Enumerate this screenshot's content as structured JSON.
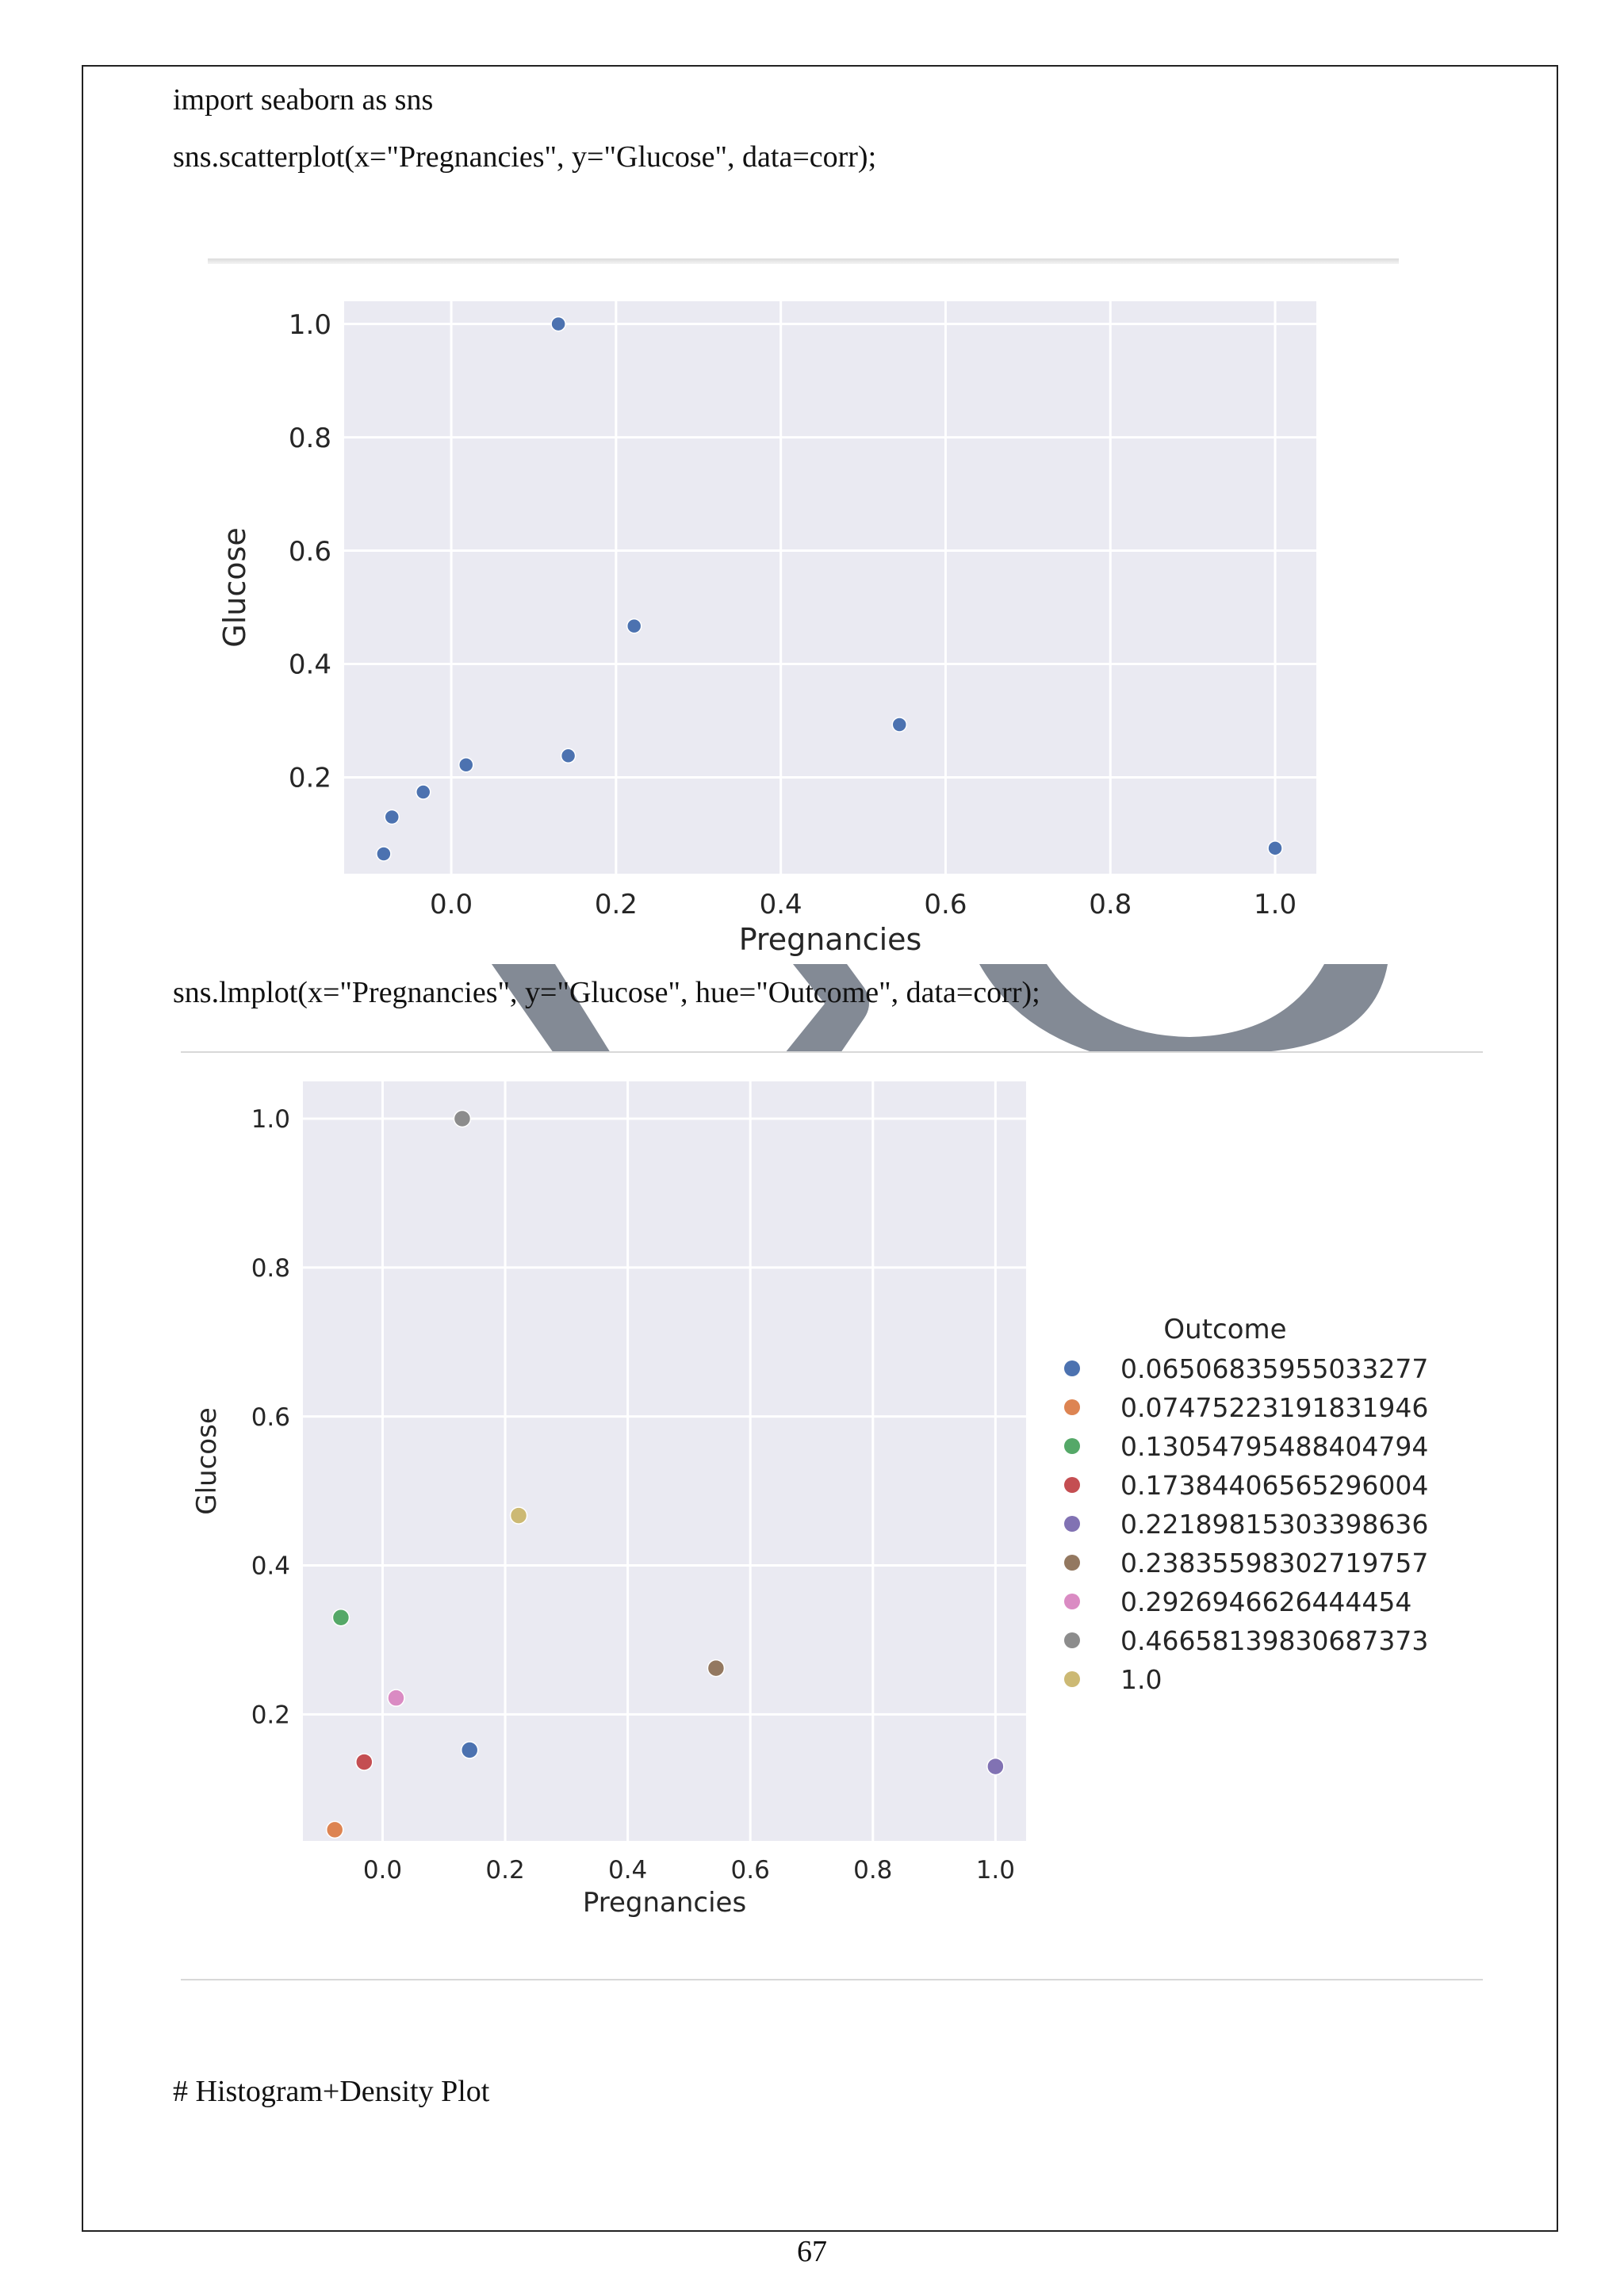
{
  "code": {
    "line1": "import seaborn as sns",
    "line2": "sns.scatterplot(x=\"Pregnancies\", y=\"Glucose\", data=corr);",
    "line3": "sns.lmplot(x=\"Pregnancies\", y=\"Glucose\", hue=\"Outcome\", data=corr);",
    "line4": "# Histogram+Density Plot"
  },
  "page_number": "67",
  "colors": {
    "plot_bg": "#eaeaf2",
    "grid": "#ffffff",
    "point_blue": "#4c72b0",
    "watermark": "#838a95"
  },
  "chart_data": [
    {
      "type": "scatter",
      "xlabel": "Pregnancies",
      "ylabel": "Glucose",
      "xlim": [
        -0.13,
        1.05
      ],
      "ylim": [
        0.03,
        1.04
      ],
      "xticks": [
        0.0,
        0.2,
        0.4,
        0.6,
        0.8,
        1.0
      ],
      "xtick_labels": [
        "0.0",
        "0.2",
        "0.4",
        "0.6",
        "0.8",
        "1.0"
      ],
      "yticks": [
        0.2,
        0.4,
        0.6,
        0.8,
        1.0
      ],
      "ytick_labels": [
        "0.2",
        "0.4",
        "0.6",
        "0.8",
        "1.0"
      ],
      "grid": true,
      "points": [
        {
          "x": -0.082,
          "y": 0.065
        },
        {
          "x": -0.072,
          "y": 0.13
        },
        {
          "x": -0.034,
          "y": 0.174
        },
        {
          "x": 0.018,
          "y": 0.222
        },
        {
          "x": 0.13,
          "y": 1.0
        },
        {
          "x": 0.142,
          "y": 0.238
        },
        {
          "x": 0.222,
          "y": 0.467
        },
        {
          "x": 0.544,
          "y": 0.293
        },
        {
          "x": 1.0,
          "y": 0.075
        }
      ]
    },
    {
      "type": "scatter",
      "xlabel": "Pregnancies",
      "ylabel": "Glucose",
      "xlim": [
        -0.13,
        1.05
      ],
      "ylim": [
        0.03,
        1.05
      ],
      "xticks": [
        0.0,
        0.2,
        0.4,
        0.6,
        0.8,
        1.0
      ],
      "xtick_labels": [
        "0.0",
        "0.2",
        "0.4",
        "0.6",
        "0.8",
        "1.0"
      ],
      "yticks": [
        0.2,
        0.4,
        0.6,
        0.8,
        1.0
      ],
      "ytick_labels": [
        "0.2",
        "0.4",
        "0.6",
        "0.8",
        "1.0"
      ],
      "grid": true,
      "legend_title": "Outcome",
      "legend_position": "right",
      "series": [
        {
          "name": "0.06506835955033277",
          "color": "#4c72b0",
          "x": [
            0.142
          ],
          "y": [
            0.152
          ]
        },
        {
          "name": "0.07475223191831946",
          "color": "#dd8452",
          "x": [
            -0.078
          ],
          "y": [
            0.045
          ]
        },
        {
          "name": "0.13054795488404794",
          "color": "#55a868",
          "x": [
            -0.068
          ],
          "y": [
            0.33
          ]
        },
        {
          "name": "0.17384406565296004",
          "color": "#c44e52",
          "x": [
            -0.03
          ],
          "y": [
            0.136
          ]
        },
        {
          "name": "0.22189815303398636",
          "color": "#8172b3",
          "x": [
            1.0
          ],
          "y": [
            0.13
          ]
        },
        {
          "name": "0.23835598302719757",
          "color": "#937860",
          "x": [
            0.544
          ],
          "y": [
            0.262
          ]
        },
        {
          "name": "0.2926946626444454",
          "color": "#da8bc3",
          "x": [
            0.022
          ],
          "y": [
            0.222
          ]
        },
        {
          "name": "0.46658139830687373",
          "color": "#8c8c8c",
          "x": [
            0.13
          ],
          "y": [
            1.0
          ]
        },
        {
          "name": "1.0",
          "color": "#ccb974",
          "x": [
            0.222
          ],
          "y": [
            0.467
          ]
        }
      ]
    }
  ]
}
